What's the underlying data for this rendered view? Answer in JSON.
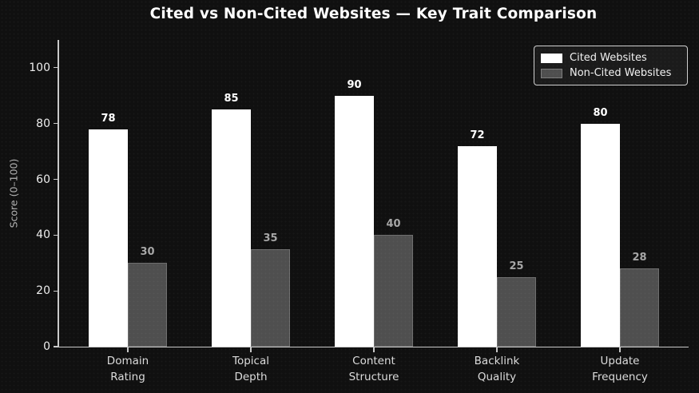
{
  "chart_data": {
    "type": "bar",
    "title": "Cited vs Non-Cited Websites — Key Trait Comparison",
    "categories": [
      "Domain\nRating",
      "Topical\nDepth",
      "Content\nStructure",
      "Backlink\nQuality",
      "Update\nFrequency"
    ],
    "series": [
      {
        "name": "Cited Websites",
        "values": [
          78,
          85,
          90,
          72,
          80
        ]
      },
      {
        "name": "Non-Cited Websites",
        "values": [
          30,
          35,
          40,
          25,
          28
        ]
      }
    ],
    "ylabel": "Score (0–100)",
    "yticks": [
      0,
      20,
      40,
      60,
      80,
      100
    ],
    "ylim": [
      0,
      110
    ],
    "grid": false,
    "legend_position": "upper right",
    "colors": {
      "background": "#101010",
      "series": [
        "#ffffff",
        "#4f4f4f"
      ],
      "value_labels": [
        "#ffffff",
        "#a6a6a6"
      ],
      "axis": "#c9c9c9",
      "tick_label": "#ededed",
      "category_label": "#dcdcdc",
      "ylabel": "#b3b3b3",
      "legend_border": "#cfcfcf",
      "legend_bg": "#1b1b1b",
      "legend_text": "#f2f2f2"
    }
  }
}
